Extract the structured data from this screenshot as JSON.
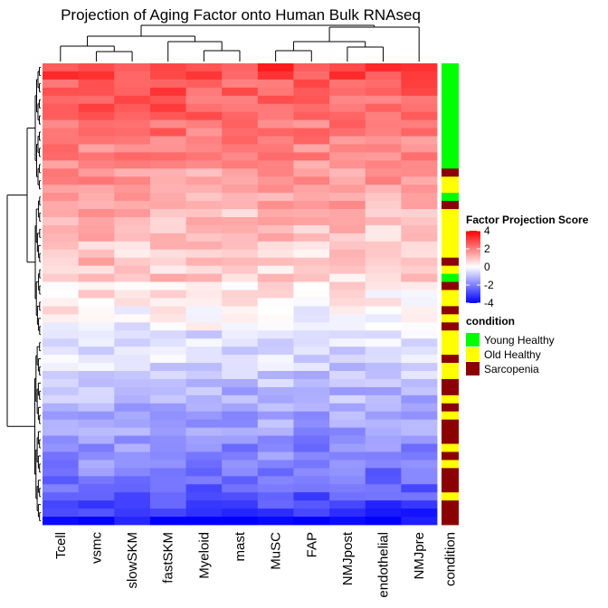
{
  "chart_data": {
    "type": "heatmap",
    "title": "Projection of Aging Factor onto Human Bulk RNAseq",
    "columns": [
      "Tcell",
      "vsmc",
      "slowSKM",
      "fastSKM",
      "Myeloid",
      "mast",
      "MuSC",
      "FAP",
      "NMJpost",
      "endothelial",
      "NMJpre"
    ],
    "annotation_column": "condition",
    "row_count": 57,
    "color_scale": {
      "title": "Factor Projection Score",
      "ticks": [
        4,
        2,
        0,
        -2,
        -4
      ],
      "range": [
        -4,
        4
      ],
      "low": "#0000ff",
      "mid": "#ffffff",
      "high": "#ff0000"
    },
    "condition_legend": {
      "title": "condition",
      "entries": [
        {
          "label": "Young Healthy",
          "color": "#00ff00"
        },
        {
          "label": "Old Healthy",
          "color": "#ffff00"
        },
        {
          "label": "Sarcopenia",
          "color": "#8b0000"
        }
      ]
    },
    "row_conditions": [
      "Y",
      "Y",
      "Y",
      "Y",
      "Y",
      "Y",
      "Y",
      "Y",
      "Y",
      "Y",
      "Y",
      "Y",
      "Y",
      "S",
      "O",
      "O",
      "Y",
      "S",
      "O",
      "O",
      "O",
      "O",
      "O",
      "O",
      "S",
      "O",
      "Y",
      "S",
      "O",
      "O",
      "S",
      "O",
      "S",
      "O",
      "O",
      "O",
      "S",
      "O",
      "O",
      "S",
      "S",
      "O",
      "S",
      "O",
      "S",
      "S",
      "S",
      "O",
      "S",
      "O",
      "S",
      "S",
      "S",
      "O",
      "S",
      "S",
      "S"
    ],
    "row_base_scores": [
      3.0,
      2.8,
      2.5,
      2.6,
      2.4,
      2.5,
      2.3,
      2.1,
      2.2,
      2.0,
      1.8,
      1.9,
      1.7,
      1.5,
      1.6,
      1.4,
      1.2,
      1.3,
      1.1,
      1.0,
      0.9,
      1.0,
      0.8,
      0.7,
      0.9,
      0.6,
      0.7,
      0.4,
      0.3,
      0.2,
      0.1,
      -0.1,
      -0.2,
      -0.4,
      -0.5,
      -0.6,
      -0.7,
      -0.8,
      -0.9,
      -1.0,
      -1.1,
      -1.2,
      -1.3,
      -1.4,
      -1.5,
      -1.6,
      -1.7,
      -1.8,
      -1.9,
      -2.0,
      -2.1,
      -2.3,
      -2.4,
      -2.6,
      -2.9,
      -3.3,
      -3.9
    ],
    "column_offsets": [
      0.2,
      0.35,
      0.1,
      0.3,
      0.0,
      -0.15,
      0.1,
      -0.1,
      0.05,
      -0.2,
      -0.05
    ]
  }
}
